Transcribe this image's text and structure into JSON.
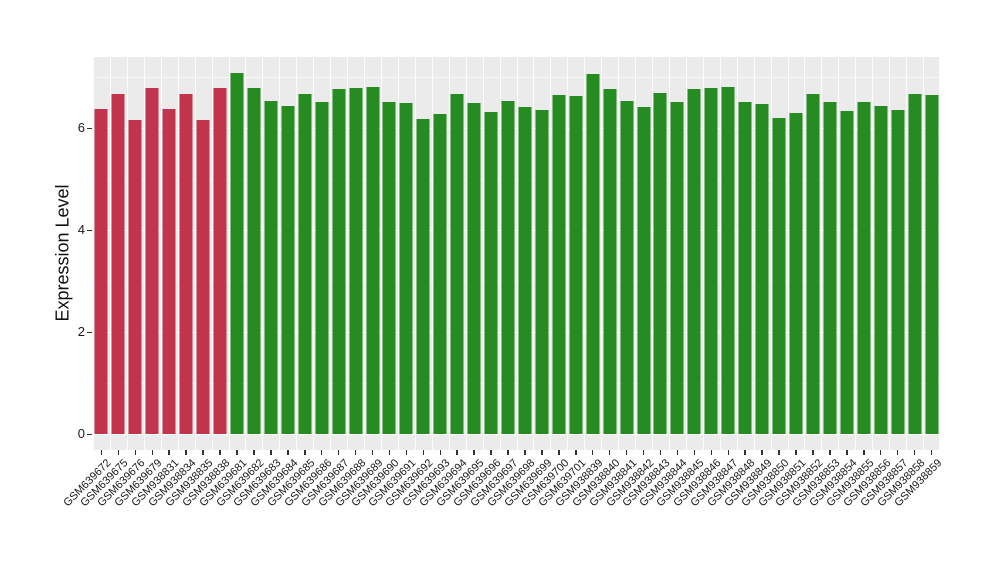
{
  "chart_data": {
    "type": "bar",
    "title": "",
    "xlabel": "",
    "ylabel": "Expression Level",
    "ylim": [
      0,
      7.4
    ],
    "yticks": [
      0,
      2,
      4,
      6
    ],
    "yticks_minor": [
      1,
      3,
      5,
      7
    ],
    "grid": "white major and minor horizontal gridlines plus vertical category-boundary lines on gray panel",
    "legend_position": "none",
    "panel_background": "#EBEBEB",
    "gridline_color": "#FFFFFF",
    "axis_text_color": "#1a1a1a",
    "tick_mark_color": "#333333",
    "group_colors": {
      "red": "#C2344D",
      "green": "#268C22"
    },
    "categories": [
      "GSM639672",
      "GSM639675",
      "GSM639676",
      "GSM639679",
      "GSM938831",
      "GSM938834",
      "GSM938835",
      "GSM938838",
      "GSM639681",
      "GSM639682",
      "GSM639683",
      "GSM639684",
      "GSM639685",
      "GSM639686",
      "GSM639687",
      "GSM639688",
      "GSM639689",
      "GSM639690",
      "GSM639691",
      "GSM639692",
      "GSM639693",
      "GSM639694",
      "GSM639695",
      "GSM639696",
      "GSM639697",
      "GSM639698",
      "GSM639699",
      "GSM639700",
      "GSM639701",
      "GSM938839",
      "GSM938840",
      "GSM938841",
      "GSM938842",
      "GSM938843",
      "GSM938844",
      "GSM938845",
      "GSM938846",
      "GSM938847",
      "GSM938848",
      "GSM938849",
      "GSM938850",
      "GSM938851",
      "GSM938852",
      "GSM938853",
      "GSM938854",
      "GSM938855",
      "GSM938856",
      "GSM938857",
      "GSM938858",
      "GSM938859"
    ],
    "values": [
      6.37,
      6.67,
      6.16,
      6.8,
      6.37,
      6.67,
      6.16,
      6.79,
      7.08,
      6.79,
      6.54,
      6.43,
      6.68,
      6.51,
      6.77,
      6.79,
      6.82,
      6.52,
      6.49,
      6.18,
      6.29,
      6.67,
      6.49,
      6.32,
      6.53,
      6.42,
      6.36,
      6.65,
      6.63,
      7.07,
      6.78,
      6.53,
      6.42,
      6.69,
      6.51,
      6.78,
      6.79,
      6.81,
      6.52,
      6.47,
      6.2,
      6.31,
      6.68,
      6.51,
      6.34,
      6.52,
      6.44,
      6.36,
      6.67,
      6.65
    ],
    "groups": [
      "red",
      "red",
      "red",
      "red",
      "red",
      "red",
      "red",
      "red",
      "green",
      "green",
      "green",
      "green",
      "green",
      "green",
      "green",
      "green",
      "green",
      "green",
      "green",
      "green",
      "green",
      "green",
      "green",
      "green",
      "green",
      "green",
      "green",
      "green",
      "green",
      "green",
      "green",
      "green",
      "green",
      "green",
      "green",
      "green",
      "green",
      "green",
      "green",
      "green",
      "green",
      "green",
      "green",
      "green",
      "green",
      "green",
      "green",
      "green",
      "green",
      "green"
    ]
  }
}
